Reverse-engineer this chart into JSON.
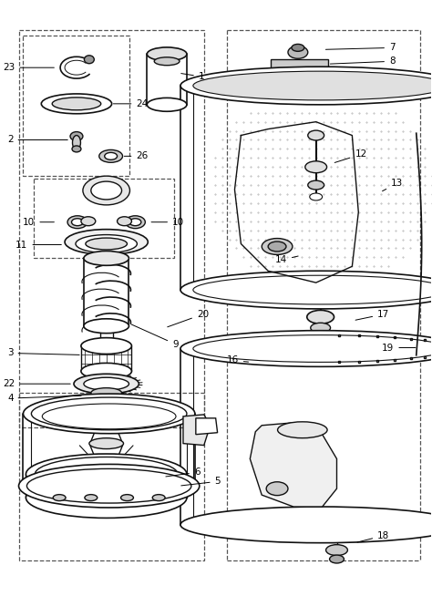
{
  "bg_color": "#ffffff",
  "line_color": "#111111",
  "fig_width": 4.74,
  "fig_height": 6.54,
  "dpi": 100
}
